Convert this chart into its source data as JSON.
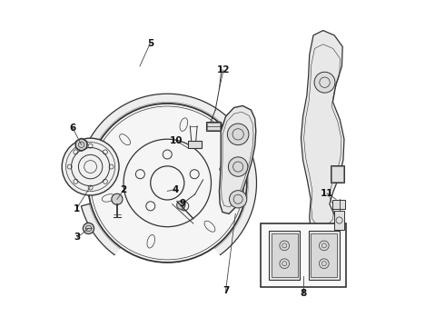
{
  "bg_color": "#ffffff",
  "line_color": "#333333",
  "line_width": 0.8,
  "label_fontsize": 7.5
}
